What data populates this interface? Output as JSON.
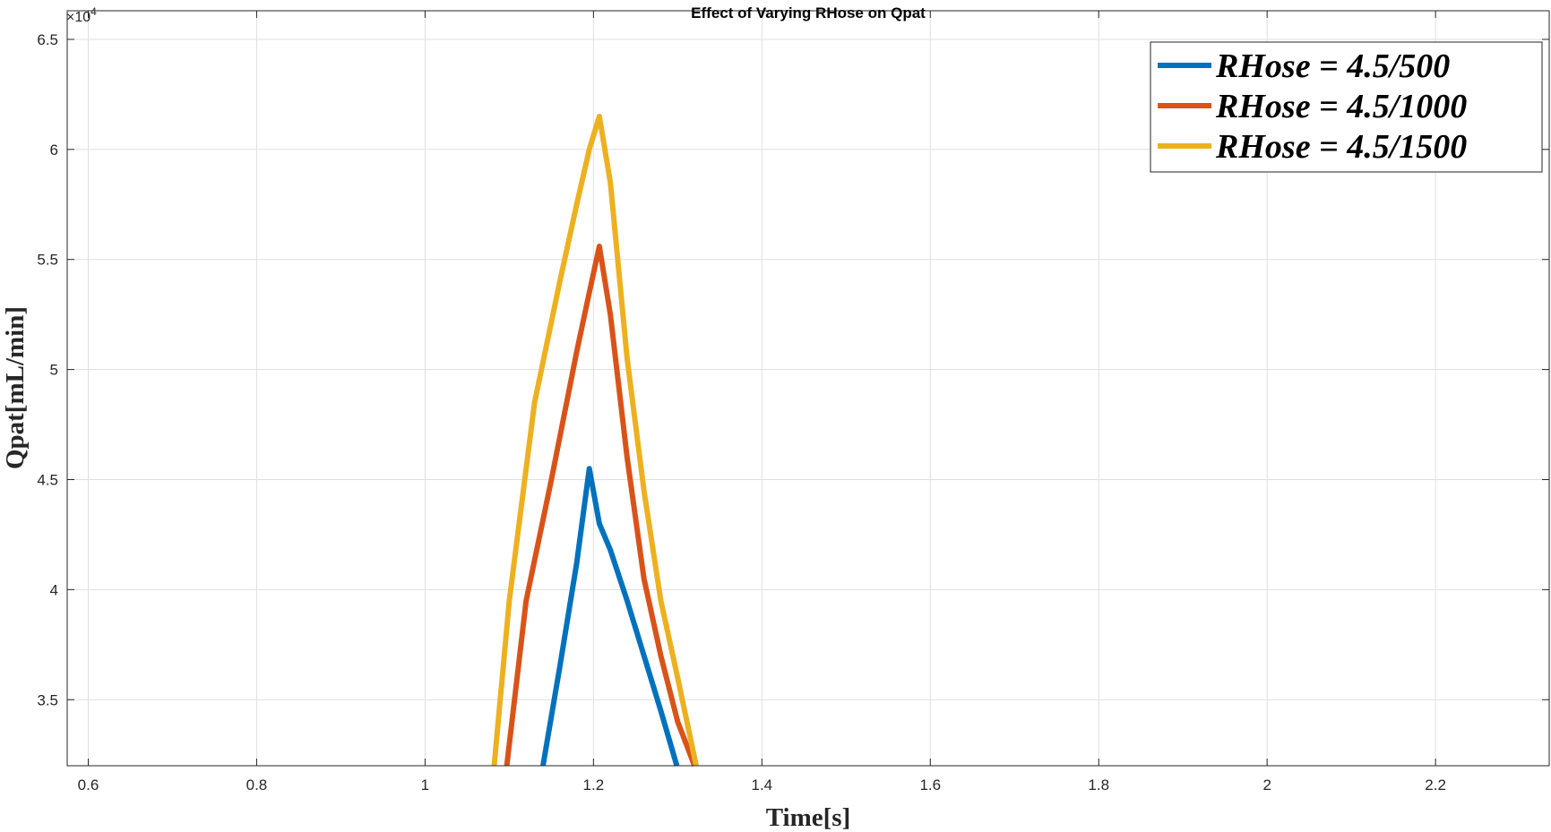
{
  "chart_data": {
    "type": "line",
    "title": "Effect of Varying RHose on Qpat",
    "xlabel": "Time[s]",
    "ylabel": "Qpat[mL/min]",
    "y_multiplier_prefix": "×10",
    "y_multiplier_exponent": "4",
    "xlim": [
      0.575,
      2.335
    ],
    "ylim": [
      3.2,
      6.63
    ],
    "x_ticks": [
      0.6,
      0.8,
      1,
      1.2,
      1.4,
      1.6,
      1.8,
      2,
      2.2
    ],
    "x_tick_labels": [
      "0.6",
      "0.8",
      "1",
      "1.2",
      "1.4",
      "1.6",
      "1.8",
      "2",
      "2.2"
    ],
    "y_ticks": [
      3.5,
      4,
      4.5,
      5,
      5.5,
      6,
      6.5
    ],
    "y_tick_labels": [
      "3.5",
      "4",
      "4.5",
      "5",
      "5.5",
      "6",
      "6.5"
    ],
    "grid": true,
    "legend_position": "top-right",
    "series": [
      {
        "name": "RHose = 4.5/500",
        "color": "#0072BD",
        "x": [
          1.14,
          1.16,
          1.18,
          1.195,
          1.207,
          1.22,
          1.24,
          1.26,
          1.28,
          1.299
        ],
        "y": [
          3.2,
          3.65,
          4.12,
          4.55,
          4.3,
          4.18,
          3.95,
          3.7,
          3.45,
          3.2
        ]
      },
      {
        "name": "RHose = 4.5/1000",
        "color": "#D95319",
        "x": [
          1.097,
          1.12,
          1.15,
          1.18,
          1.195,
          1.207,
          1.22,
          1.24,
          1.26,
          1.28,
          1.3,
          1.32
        ],
        "y": [
          3.2,
          3.95,
          4.5,
          5.08,
          5.35,
          5.56,
          5.25,
          4.6,
          4.05,
          3.7,
          3.4,
          3.2
        ]
      },
      {
        "name": "RHose = 4.5/1500",
        "color": "#EDB120",
        "x": [
          1.082,
          1.1,
          1.13,
          1.16,
          1.18,
          1.195,
          1.207,
          1.22,
          1.24,
          1.26,
          1.28,
          1.3,
          1.322
        ],
        "y": [
          3.2,
          3.95,
          4.85,
          5.4,
          5.75,
          6.0,
          6.15,
          5.85,
          5.05,
          4.45,
          3.95,
          3.6,
          3.2
        ]
      }
    ]
  }
}
